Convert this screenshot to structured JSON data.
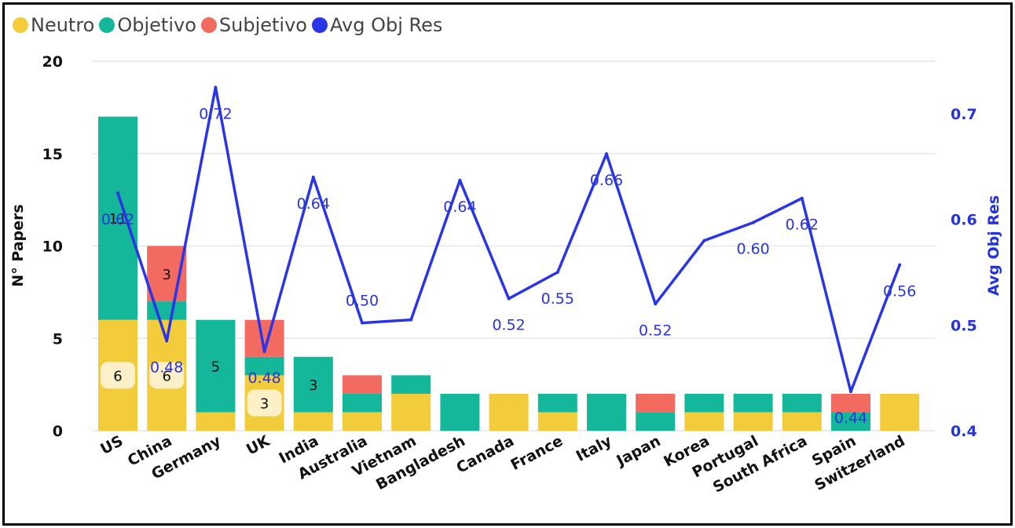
{
  "colors": {
    "neutro": "#F2CC3A",
    "objetivo": "#15B79A",
    "subjetivo": "#F26A60",
    "line": "#2A35E6",
    "line_label": "#2A35D8",
    "grid": "#E6E6E6",
    "badge": "#FBF0C8"
  },
  "chart_data": {
    "type": "bar",
    "subtype": "stacked-bar-with-line",
    "categories": [
      "US",
      "China",
      "Germany",
      "UK",
      "India",
      "Australia",
      "Vietnam",
      "Bangladesh",
      "Canada",
      "France",
      "Italy",
      "Japan",
      "Korea",
      "Portugal",
      "South Africa",
      "Spain",
      "Switzerland"
    ],
    "series": [
      {
        "name": "Neutro",
        "key": "neutro",
        "values": [
          6,
          6,
          1,
          3,
          1,
          1,
          2,
          0,
          2,
          1,
          0,
          0,
          1,
          1,
          1,
          0,
          2
        ]
      },
      {
        "name": "Objetivo",
        "key": "objetivo",
        "values": [
          11,
          1,
          5,
          1,
          3,
          1,
          1,
          2,
          0,
          1,
          2,
          1,
          1,
          1,
          1,
          1,
          0
        ]
      },
      {
        "name": "Subjetivo",
        "key": "subjetivo",
        "values": [
          0,
          3,
          0,
          2,
          0,
          1,
          0,
          0,
          0,
          0,
          0,
          1,
          0,
          0,
          0,
          1,
          0
        ]
      }
    ],
    "line_series": {
      "name": "Avg Obj Res",
      "values": [
        0.625,
        0.485,
        0.725,
        0.475,
        0.64,
        0.502,
        0.505,
        0.637,
        0.525,
        0.55,
        0.662,
        0.52,
        0.58,
        0.597,
        0.62,
        0.437,
        0.557
      ]
    },
    "bar_labels": [
      {
        "category": "US",
        "series": "neutro",
        "text": "6",
        "badge": true
      },
      {
        "category": "US",
        "series": "objetivo",
        "text": "11",
        "badge": false
      },
      {
        "category": "China",
        "series": "neutro",
        "text": "6",
        "badge": true
      },
      {
        "category": "China",
        "series": "subjetivo",
        "text": "3",
        "badge": false
      },
      {
        "category": "Germany",
        "series": "objetivo",
        "text": "5",
        "badge": false
      },
      {
        "category": "UK",
        "series": "neutro",
        "text": "3",
        "badge": true
      },
      {
        "category": "India",
        "series": "objetivo",
        "text": "3",
        "badge": false
      }
    ],
    "line_labels": [
      {
        "category": "US",
        "text": "0.62",
        "placement": "below"
      },
      {
        "category": "China",
        "text": "0.48",
        "placement": "below"
      },
      {
        "category": "Germany",
        "text": "0.72",
        "placement": "below"
      },
      {
        "category": "UK",
        "text": "0.48",
        "placement": "below"
      },
      {
        "category": "India",
        "text": "0.64",
        "placement": "below"
      },
      {
        "category": "Australia",
        "text": "0.50",
        "placement": "above"
      },
      {
        "category": "Bangladesh",
        "text": "0.64",
        "placement": "below"
      },
      {
        "category": "Canada",
        "text": "0.52",
        "placement": "below"
      },
      {
        "category": "France",
        "text": "0.55",
        "placement": "below"
      },
      {
        "category": "Italy",
        "text": "0.66",
        "placement": "below"
      },
      {
        "category": "Japan",
        "text": "0.52",
        "placement": "below"
      },
      {
        "category": "Portugal",
        "text": "0.60",
        "placement": "below"
      },
      {
        "category": "South Africa",
        "text": "0.62",
        "placement": "below"
      },
      {
        "category": "Spain",
        "text": "0.44",
        "placement": "below"
      },
      {
        "category": "Switzerland",
        "text": "0.56",
        "placement": "below"
      }
    ],
    "legend": [
      "Neutro",
      "Objetivo",
      "Subjetivo",
      "Avg Obj Res"
    ],
    "legend_position": "top-left",
    "ylabel": "N° Papers",
    "y2label": "Avg Obj Res",
    "ylim": [
      0,
      20
    ],
    "y2lim": [
      0.4,
      0.75
    ],
    "yticks": [
      "0",
      "5",
      "10",
      "15",
      "20"
    ],
    "y2ticks": [
      "0.4",
      "0.5",
      "0.6",
      "0.7"
    ],
    "grid": true
  }
}
